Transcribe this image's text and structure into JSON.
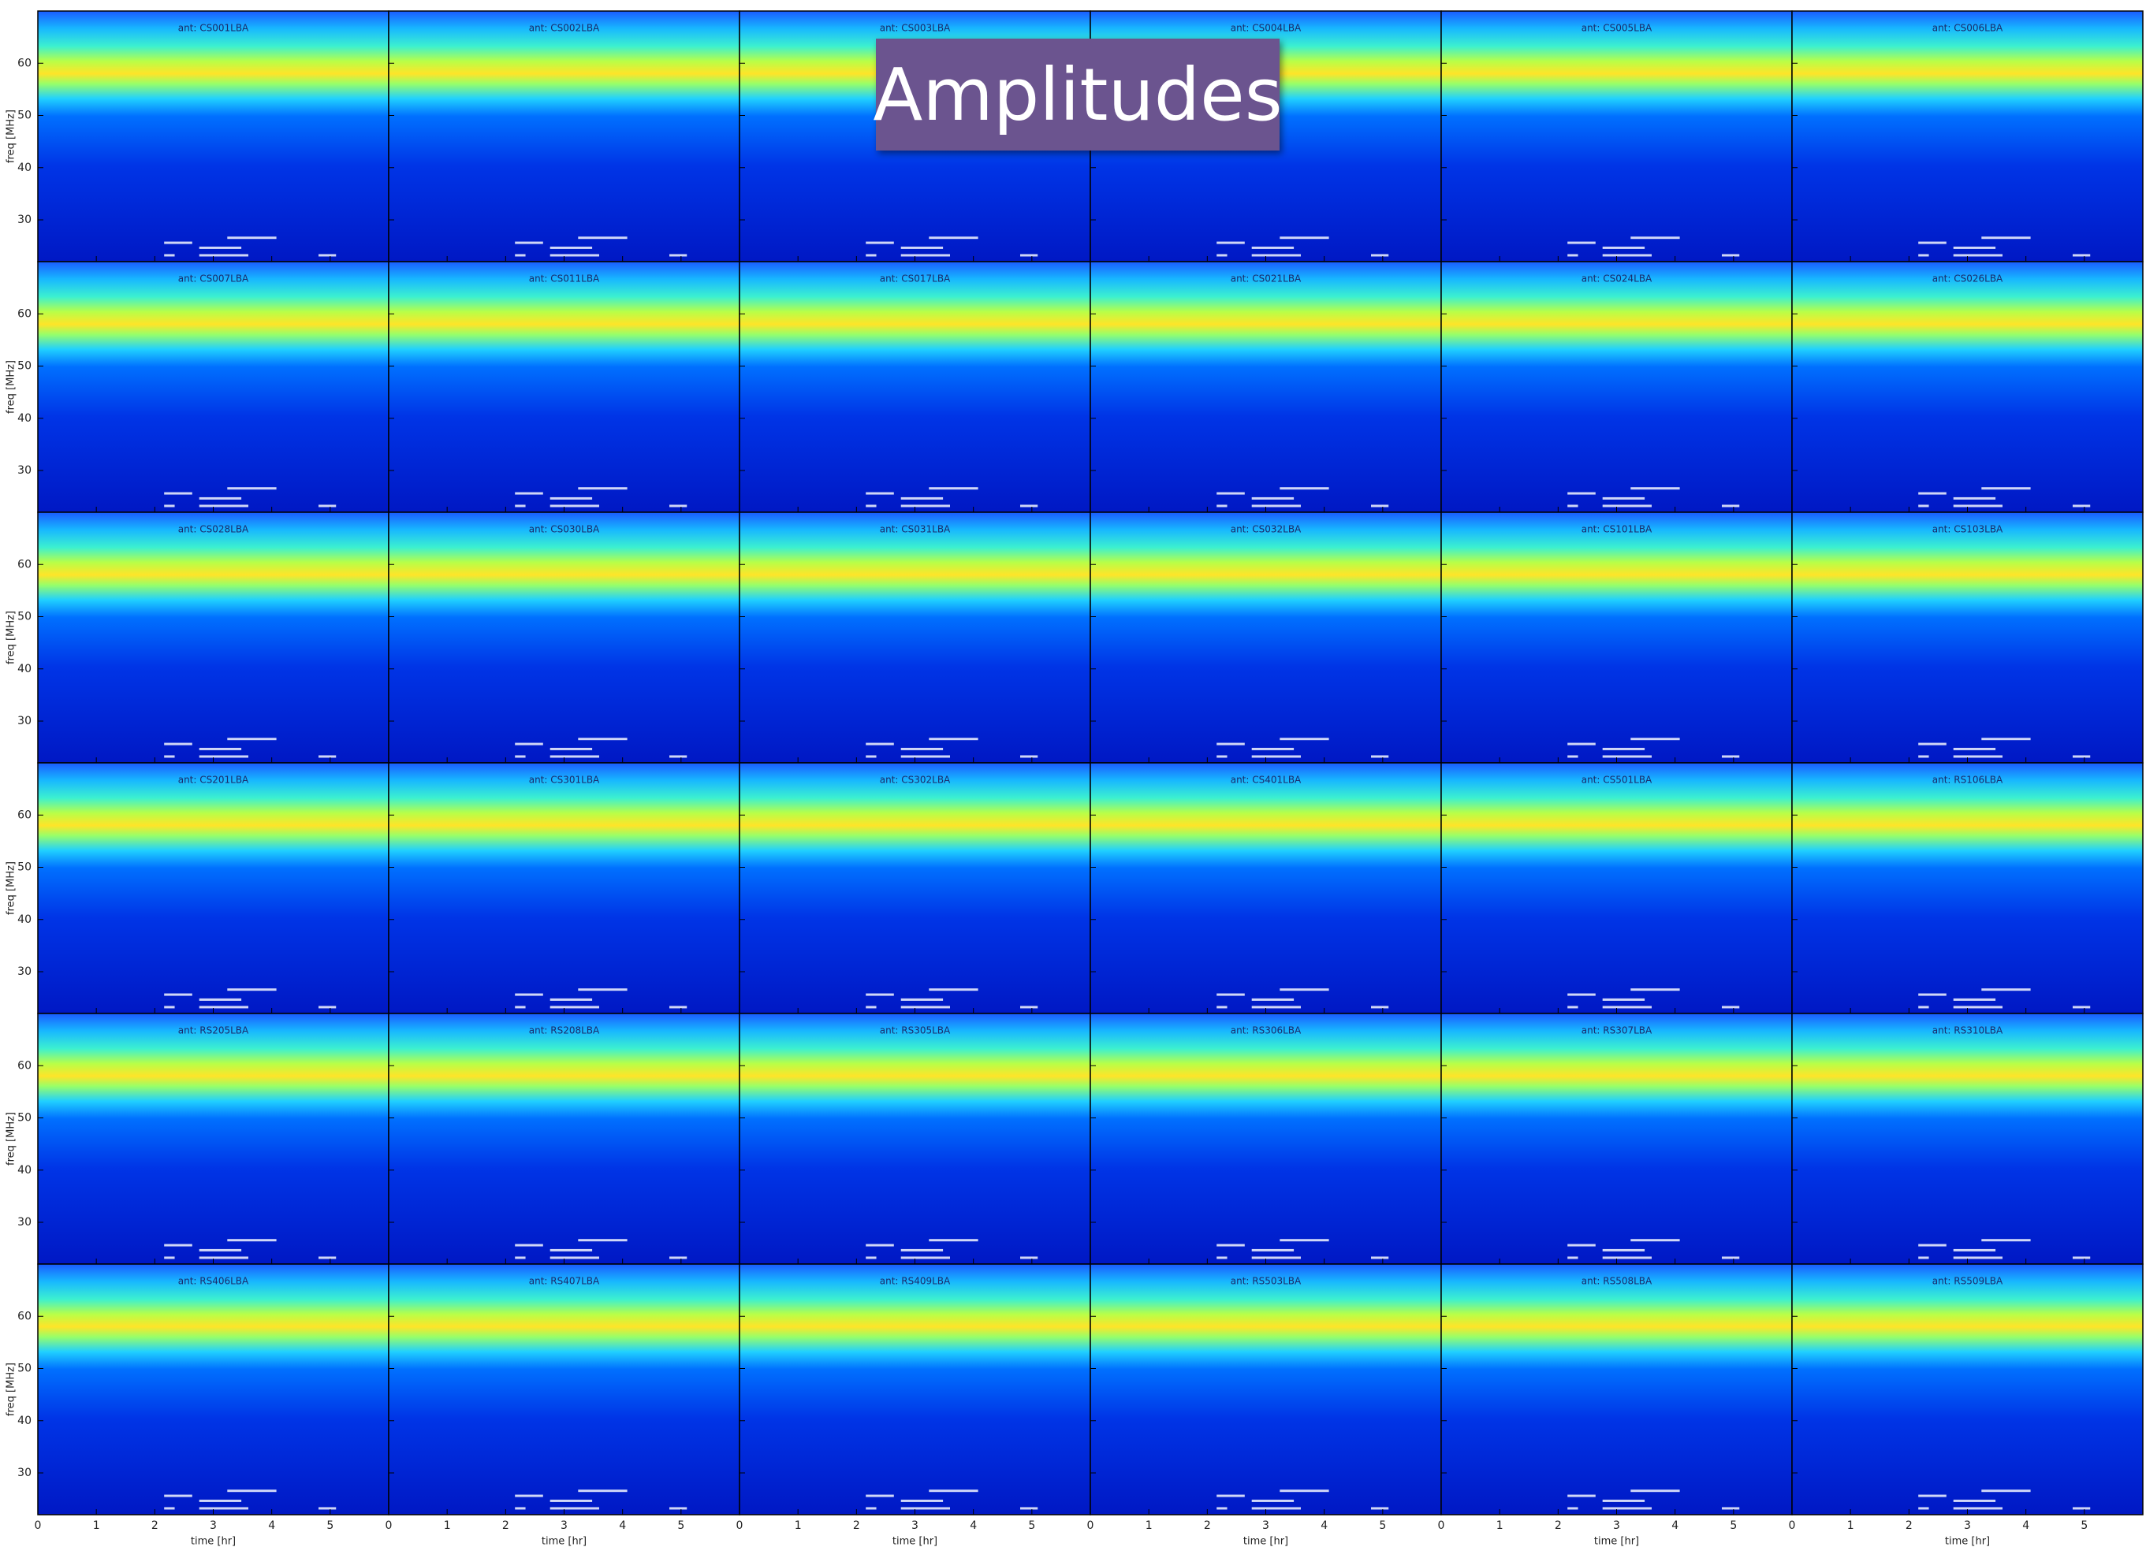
{
  "title": "Amplitudes",
  "ylabel": "freq [MHz]",
  "xlabel": "time [hr]",
  "chart_data": [
    {
      "type": "spectrogram",
      "title": "ant: CS001LBA",
      "xlim": [
        0,
        6
      ],
      "ylim": [
        22,
        70
      ],
      "xticks": [
        0,
        1,
        2,
        3,
        4,
        5
      ],
      "yticks": [
        30,
        40,
        50,
        60
      ]
    },
    {
      "type": "spectrogram",
      "title": "ant: CS002LBA",
      "xlim": [
        0,
        6
      ],
      "ylim": [
        22,
        70
      ],
      "xticks": [
        0,
        1,
        2,
        3,
        4,
        5
      ],
      "yticks": [
        30,
        40,
        50,
        60
      ]
    },
    {
      "type": "spectrogram",
      "title": "ant: CS003LBA",
      "xlim": [
        0,
        6
      ],
      "ylim": [
        22,
        70
      ],
      "xticks": [
        0,
        1,
        2,
        3,
        4,
        5
      ],
      "yticks": [
        30,
        40,
        50,
        60
      ]
    },
    {
      "type": "spectrogram",
      "title": "ant: CS004LBA",
      "xlim": [
        0,
        6
      ],
      "ylim": [
        22,
        70
      ],
      "xticks": [
        0,
        1,
        2,
        3,
        4,
        5
      ],
      "yticks": [
        30,
        40,
        50,
        60
      ]
    },
    {
      "type": "spectrogram",
      "title": "ant: CS005LBA",
      "xlim": [
        0,
        6
      ],
      "ylim": [
        22,
        70
      ],
      "xticks": [
        0,
        1,
        2,
        3,
        4,
        5
      ],
      "yticks": [
        30,
        40,
        50,
        60
      ]
    },
    {
      "type": "spectrogram",
      "title": "ant: CS006LBA",
      "xlim": [
        0,
        6
      ],
      "ylim": [
        22,
        70
      ],
      "xticks": [
        0,
        1,
        2,
        3,
        4,
        5
      ],
      "yticks": [
        30,
        40,
        50,
        60
      ]
    },
    {
      "type": "spectrogram",
      "title": "ant: CS007LBA",
      "xlim": [
        0,
        6
      ],
      "ylim": [
        22,
        70
      ],
      "xticks": [
        0,
        1,
        2,
        3,
        4,
        5
      ],
      "yticks": [
        30,
        40,
        50,
        60
      ]
    },
    {
      "type": "spectrogram",
      "title": "ant: CS011LBA",
      "xlim": [
        0,
        6
      ],
      "ylim": [
        22,
        70
      ],
      "xticks": [
        0,
        1,
        2,
        3,
        4,
        5
      ],
      "yticks": [
        30,
        40,
        50,
        60
      ]
    },
    {
      "type": "spectrogram",
      "title": "ant: CS017LBA",
      "xlim": [
        0,
        6
      ],
      "ylim": [
        22,
        70
      ],
      "xticks": [
        0,
        1,
        2,
        3,
        4,
        5
      ],
      "yticks": [
        30,
        40,
        50,
        60
      ]
    },
    {
      "type": "spectrogram",
      "title": "ant: CS021LBA",
      "xlim": [
        0,
        6
      ],
      "ylim": [
        22,
        70
      ],
      "xticks": [
        0,
        1,
        2,
        3,
        4,
        5
      ],
      "yticks": [
        30,
        40,
        50,
        60
      ]
    },
    {
      "type": "spectrogram",
      "title": "ant: CS024LBA",
      "xlim": [
        0,
        6
      ],
      "ylim": [
        22,
        70
      ],
      "xticks": [
        0,
        1,
        2,
        3,
        4,
        5
      ],
      "yticks": [
        30,
        40,
        50,
        60
      ]
    },
    {
      "type": "spectrogram",
      "title": "ant: CS026LBA",
      "xlim": [
        0,
        6
      ],
      "ylim": [
        22,
        70
      ],
      "xticks": [
        0,
        1,
        2,
        3,
        4,
        5
      ],
      "yticks": [
        30,
        40,
        50,
        60
      ]
    },
    {
      "type": "spectrogram",
      "title": "ant: CS028LBA",
      "xlim": [
        0,
        6
      ],
      "ylim": [
        22,
        70
      ],
      "xticks": [
        0,
        1,
        2,
        3,
        4,
        5
      ],
      "yticks": [
        30,
        40,
        50,
        60
      ]
    },
    {
      "type": "spectrogram",
      "title": "ant: CS030LBA",
      "xlim": [
        0,
        6
      ],
      "ylim": [
        22,
        70
      ],
      "xticks": [
        0,
        1,
        2,
        3,
        4,
        5
      ],
      "yticks": [
        30,
        40,
        50,
        60
      ]
    },
    {
      "type": "spectrogram",
      "title": "ant: CS031LBA",
      "xlim": [
        0,
        6
      ],
      "ylim": [
        22,
        70
      ],
      "xticks": [
        0,
        1,
        2,
        3,
        4,
        5
      ],
      "yticks": [
        30,
        40,
        50,
        60
      ]
    },
    {
      "type": "spectrogram",
      "title": "ant: CS032LBA",
      "xlim": [
        0,
        6
      ],
      "ylim": [
        22,
        70
      ],
      "xticks": [
        0,
        1,
        2,
        3,
        4,
        5
      ],
      "yticks": [
        30,
        40,
        50,
        60
      ]
    },
    {
      "type": "spectrogram",
      "title": "ant: CS101LBA",
      "xlim": [
        0,
        6
      ],
      "ylim": [
        22,
        70
      ],
      "xticks": [
        0,
        1,
        2,
        3,
        4,
        5
      ],
      "yticks": [
        30,
        40,
        50,
        60
      ]
    },
    {
      "type": "spectrogram",
      "title": "ant: CS103LBA",
      "xlim": [
        0,
        6
      ],
      "ylim": [
        22,
        70
      ],
      "xticks": [
        0,
        1,
        2,
        3,
        4,
        5
      ],
      "yticks": [
        30,
        40,
        50,
        60
      ]
    },
    {
      "type": "spectrogram",
      "title": "ant: CS201LBA",
      "xlim": [
        0,
        6
      ],
      "ylim": [
        22,
        70
      ],
      "xticks": [
        0,
        1,
        2,
        3,
        4,
        5
      ],
      "yticks": [
        30,
        40,
        50,
        60
      ]
    },
    {
      "type": "spectrogram",
      "title": "ant: CS301LBA",
      "xlim": [
        0,
        6
      ],
      "ylim": [
        22,
        70
      ],
      "xticks": [
        0,
        1,
        2,
        3,
        4,
        5
      ],
      "yticks": [
        30,
        40,
        50,
        60
      ]
    },
    {
      "type": "spectrogram",
      "title": "ant: CS302LBA",
      "xlim": [
        0,
        6
      ],
      "ylim": [
        22,
        70
      ],
      "xticks": [
        0,
        1,
        2,
        3,
        4,
        5
      ],
      "yticks": [
        30,
        40,
        50,
        60
      ]
    },
    {
      "type": "spectrogram",
      "title": "ant: CS401LBA",
      "xlim": [
        0,
        6
      ],
      "ylim": [
        22,
        70
      ],
      "xticks": [
        0,
        1,
        2,
        3,
        4,
        5
      ],
      "yticks": [
        30,
        40,
        50,
        60
      ]
    },
    {
      "type": "spectrogram",
      "title": "ant: CS501LBA",
      "xlim": [
        0,
        6
      ],
      "ylim": [
        22,
        70
      ],
      "xticks": [
        0,
        1,
        2,
        3,
        4,
        5
      ],
      "yticks": [
        30,
        40,
        50,
        60
      ]
    },
    {
      "type": "spectrogram",
      "title": "ant: RS106LBA",
      "xlim": [
        0,
        6
      ],
      "ylim": [
        22,
        70
      ],
      "xticks": [
        0,
        1,
        2,
        3,
        4,
        5
      ],
      "yticks": [
        30,
        40,
        50,
        60
      ]
    },
    {
      "type": "spectrogram",
      "title": "ant: RS205LBA",
      "xlim": [
        0,
        6
      ],
      "ylim": [
        22,
        70
      ],
      "xticks": [
        0,
        1,
        2,
        3,
        4,
        5
      ],
      "yticks": [
        30,
        40,
        50,
        60
      ]
    },
    {
      "type": "spectrogram",
      "title": "ant: RS208LBA",
      "xlim": [
        0,
        6
      ],
      "ylim": [
        22,
        70
      ],
      "xticks": [
        0,
        1,
        2,
        3,
        4,
        5
      ],
      "yticks": [
        30,
        40,
        50,
        60
      ]
    },
    {
      "type": "spectrogram",
      "title": "ant: RS305LBA",
      "xlim": [
        0,
        6
      ],
      "ylim": [
        22,
        70
      ],
      "xticks": [
        0,
        1,
        2,
        3,
        4,
        5
      ],
      "yticks": [
        30,
        40,
        50,
        60
      ]
    },
    {
      "type": "spectrogram",
      "title": "ant: RS306LBA",
      "xlim": [
        0,
        6
      ],
      "ylim": [
        22,
        70
      ],
      "xticks": [
        0,
        1,
        2,
        3,
        4,
        5
      ],
      "yticks": [
        30,
        40,
        50,
        60
      ]
    },
    {
      "type": "spectrogram",
      "title": "ant: RS307LBA",
      "xlim": [
        0,
        6
      ],
      "ylim": [
        22,
        70
      ],
      "xticks": [
        0,
        1,
        2,
        3,
        4,
        5
      ],
      "yticks": [
        30,
        40,
        50,
        60
      ]
    },
    {
      "type": "spectrogram",
      "title": "ant: RS310LBA",
      "xlim": [
        0,
        6
      ],
      "ylim": [
        22,
        70
      ],
      "xticks": [
        0,
        1,
        2,
        3,
        4,
        5
      ],
      "yticks": [
        30,
        40,
        50,
        60
      ]
    },
    {
      "type": "spectrogram",
      "title": "ant: RS406LBA",
      "xlim": [
        0,
        6
      ],
      "ylim": [
        22,
        70
      ],
      "xticks": [
        0,
        1,
        2,
        3,
        4,
        5
      ],
      "yticks": [
        30,
        40,
        50,
        60
      ]
    },
    {
      "type": "spectrogram",
      "title": "ant: RS407LBA",
      "xlim": [
        0,
        6
      ],
      "ylim": [
        22,
        70
      ],
      "xticks": [
        0,
        1,
        2,
        3,
        4,
        5
      ],
      "yticks": [
        30,
        40,
        50,
        60
      ]
    },
    {
      "type": "spectrogram",
      "title": "ant: RS409LBA",
      "xlim": [
        0,
        6
      ],
      "ylim": [
        22,
        70
      ],
      "xticks": [
        0,
        1,
        2,
        3,
        4,
        5
      ],
      "yticks": [
        30,
        40,
        50,
        60
      ]
    },
    {
      "type": "spectrogram",
      "title": "ant: RS503LBA",
      "xlim": [
        0,
        6
      ],
      "ylim": [
        22,
        70
      ],
      "xticks": [
        0,
        1,
        2,
        3,
        4,
        5
      ],
      "yticks": [
        30,
        40,
        50,
        60
      ]
    },
    {
      "type": "spectrogram",
      "title": "ant: RS508LBA",
      "xlim": [
        0,
        6
      ],
      "ylim": [
        22,
        70
      ],
      "xticks": [
        0,
        1,
        2,
        3,
        4,
        5
      ],
      "yticks": [
        30,
        40,
        50,
        60
      ]
    },
    {
      "type": "spectrogram",
      "title": "ant: RS509LBA",
      "xlim": [
        0,
        6
      ],
      "ylim": [
        22,
        70
      ],
      "xticks": [
        0,
        1,
        2,
        3,
        4,
        5
      ],
      "yticks": [
        30,
        40,
        50,
        60
      ]
    }
  ]
}
